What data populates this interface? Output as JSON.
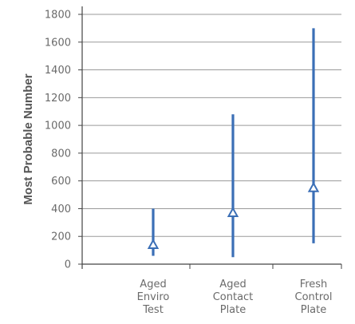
{
  "chart_data": {
    "type": "scatter",
    "title": "",
    "xlabel": "",
    "ylabel": "Most Probable Number",
    "ylim": [
      0,
      1800
    ],
    "yticks": [
      0,
      200,
      400,
      600,
      800,
      1000,
      1200,
      1400,
      1600,
      1800
    ],
    "grid": true,
    "categories": [
      [
        "Aged",
        "Enviro",
        "Test"
      ],
      [
        "Aged",
        "Contact",
        "Plate"
      ],
      [
        "Fresh",
        "Control",
        "Plate"
      ]
    ],
    "points": [
      {
        "value": 140,
        "low": 60,
        "high": 400
      },
      {
        "value": 370,
        "low": 50,
        "high": 1080
      },
      {
        "value": 550,
        "low": 150,
        "high": 1700
      }
    ],
    "series_color": "#3b6fb6",
    "grid_color": "#9a9a9a",
    "axis_color": "#444444"
  }
}
